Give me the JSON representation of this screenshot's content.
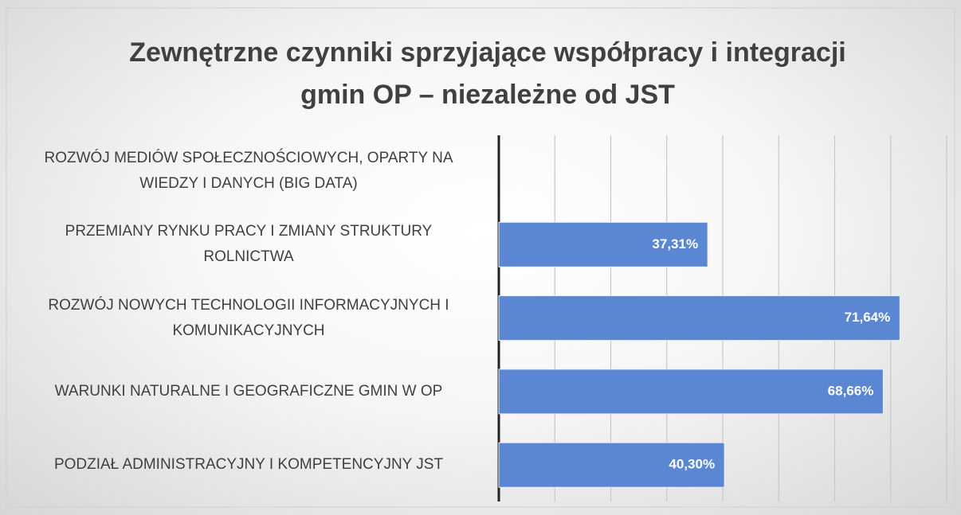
{
  "chart_data": {
    "type": "bar",
    "orientation": "horizontal",
    "title": "Zewnętrzne czynniki sprzyjające współpracy i integracji gmin OP – niezależne od JST",
    "categories": [
      "ROZWÓJ MEDIÓW SPOŁECZNOŚCIOWYCH, OPARTY NA WIEDZY I DANYCH (BIG DATA)",
      "PRZEMIANY RYNKU PRACY I ZMIANY STRUKTURY ROLNICTWA",
      "ROZWÓJ NOWYCH TECHNOLOGII INFORMACYJNYCH I KOMUNIKACYJNYCH",
      "WARUNKI NATURALNE I GEOGRAFICZNE GMIN W OP",
      "PODZIAŁ ADMINISTRACYJNY I KOMPETENCYJNY JST"
    ],
    "values": [
      0,
      37.31,
      71.64,
      68.66,
      40.3
    ],
    "value_labels": [
      null,
      "37,31%",
      "71,64%",
      "68,66%",
      "40,30%"
    ],
    "color": "#5b86d1",
    "xlim": [
      0,
      80
    ],
    "xticks": [
      0,
      10,
      20,
      30,
      40,
      50,
      60,
      70,
      80
    ],
    "grid": true
  }
}
